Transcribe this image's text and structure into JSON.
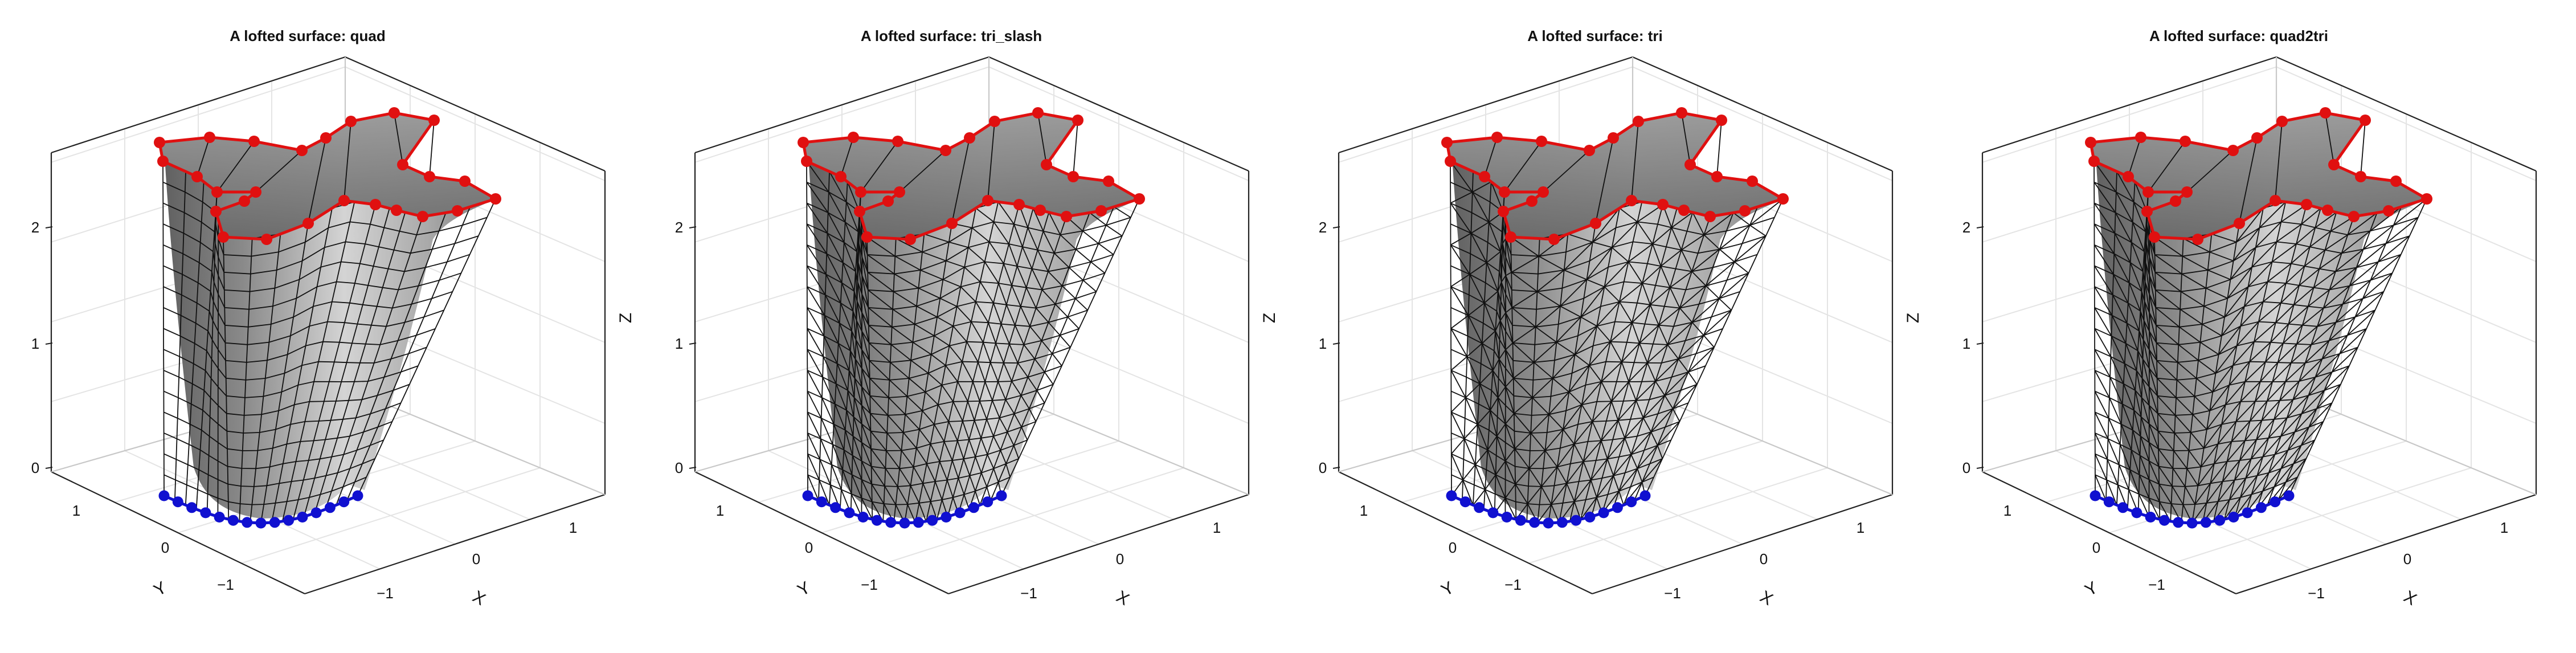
{
  "figure": {
    "panels": [
      {
        "title": "A lofted surface: quad",
        "mesh": "quad"
      },
      {
        "title": "A lofted surface: tri_slash",
        "mesh": "tri_slash"
      },
      {
        "title": "A lofted surface: tri",
        "mesh": "tri"
      },
      {
        "title": "A lofted surface: quad2tri",
        "mesh": "quad2tri"
      }
    ],
    "axis_labels": {
      "x": "X",
      "y": "Y",
      "z": "Z"
    },
    "ticks": {
      "x": [
        "−1",
        "0",
        "1"
      ],
      "y": [
        "−1",
        "0",
        "1"
      ],
      "z": [
        "0",
        "1",
        "2"
      ]
    },
    "z_label_shown": [
      false,
      true,
      true,
      true
    ],
    "colors": {
      "surface_light": "#cfcfcf",
      "surface_dark": "#6f6f6f",
      "mesh_edges": "#111111",
      "top_curve": "#e01010",
      "bottom_curve": "#1010d0",
      "axis": "#222222",
      "grid": "#e4e4e4"
    }
  }
}
